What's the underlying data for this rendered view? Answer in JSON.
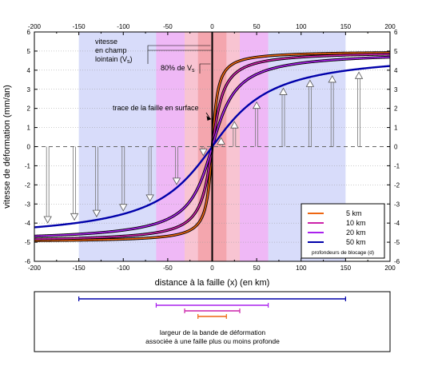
{
  "chart_data": {
    "type": "line",
    "xlabel": "distance à la faille (x) (en km)",
    "ylabel": "vitesse de déformation (mm/an)",
    "xlim": [
      -200,
      200
    ],
    "ylim": [
      -6,
      6
    ],
    "x_ticks": [
      -200,
      -150,
      -100,
      -50,
      0,
      50,
      100,
      150,
      200
    ],
    "y_ticks": [
      -6,
      -5,
      -4,
      -3,
      -2,
      -1,
      0,
      1,
      2,
      3,
      4,
      5,
      6
    ],
    "x_tick_labels": [
      "-200",
      "-150",
      "-100",
      "-50",
      "0",
      "50",
      "100",
      "150",
      "200"
    ],
    "y_tick_labels": [
      "-6",
      "-5",
      "-4",
      "-3",
      "-2",
      "-1",
      "0",
      "1",
      "2",
      "3",
      "4",
      "5",
      "6"
    ],
    "far_field_velocity": 5,
    "dashed_zero_line": true,
    "series": [
      {
        "name": "5 km",
        "locking_depth_km": 5,
        "color": "#ee6611"
      },
      {
        "name": "10 km",
        "locking_depth_km": 10,
        "color": "#cc22aa"
      },
      {
        "name": "20 km",
        "locking_depth_km": 20,
        "color": "#aa22ee"
      },
      {
        "name": "50 km",
        "locking_depth_km": 50,
        "color": "#0000aa"
      }
    ],
    "deformation_bands": [
      {
        "halfwidth_km": 150,
        "color": "#d8dcfa"
      },
      {
        "halfwidth_km": 63,
        "color": "#efb8f6"
      },
      {
        "halfwidth_km": 31,
        "color": "#f8c4d2"
      },
      {
        "halfwidth_km": 16,
        "color": "#f4a6ae"
      }
    ],
    "arrows_x_km": [
      -185,
      -155,
      -130,
      -100,
      -70,
      -40,
      -10,
      10,
      25,
      50,
      80,
      110,
      135,
      165
    ],
    "annotations": {
      "far_field_line1": "vitesse",
      "far_field_line2": "en champ",
      "far_field_line3": "lointain (V",
      "far_field_sub": "s",
      "far_field_close": ")",
      "pct_label": "80% de V",
      "pct_sub": "s",
      "trace_label": "trace de la faille en surface"
    },
    "legend": {
      "note": "profondeurs de blocage (d)"
    },
    "widths_panel": {
      "caption_line1": "largeur de la bande de déformation",
      "caption_line2": "associée à une faille plus ou moins profonde"
    }
  }
}
